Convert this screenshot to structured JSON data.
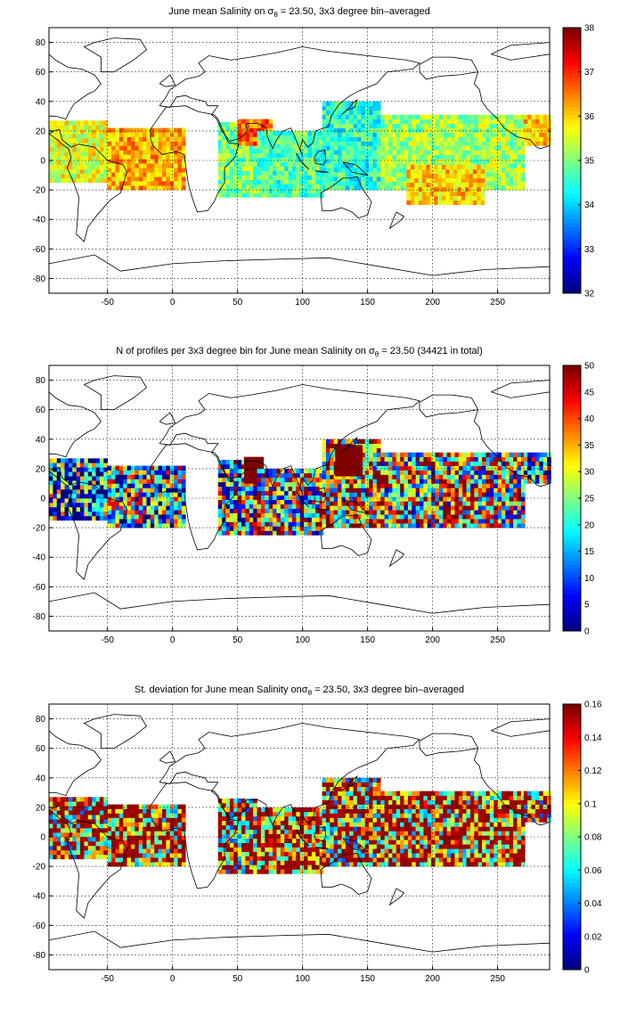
{
  "colors": {
    "colormap": "jet",
    "background": "#ffffff",
    "coast": "#000000"
  },
  "chart_data": [
    {
      "type": "heatmap",
      "title": "June mean Salinity on σθ = 23.50, 3x3 degree bin–averaged",
      "title_parts": [
        "June mean Salinity on ",
        "σ",
        "θ",
        " = 23.50, 3x3 degree bin–averaged"
      ],
      "xlim": [
        -95,
        290
      ],
      "ylim": [
        -90,
        90
      ],
      "xticks": [
        -50,
        0,
        50,
        100,
        150,
        200,
        250
      ],
      "yticks": [
        -80,
        -60,
        -40,
        -20,
        0,
        20,
        40,
        60,
        80
      ],
      "grid": true,
      "colorbar": {
        "min": 32,
        "max": 38,
        "ticks": [
          32,
          33,
          34,
          35,
          36,
          37,
          38
        ],
        "tick_labels": [
          "32",
          "33",
          "34",
          "35",
          "36",
          "37",
          "38"
        ]
      },
      "regions": [
        {
          "name": "",
          "lon": [
            -95,
            -50
          ],
          "lat": [
            -15,
            25
          ],
          "value": 35.6
        },
        {
          "name": "",
          "lon": [
            -50,
            10
          ],
          "lat": [
            -20,
            20
          ],
          "value": 36.2
        },
        {
          "name": "",
          "lon": [
            35,
            65
          ],
          "lat": [
            -25,
            25
          ],
          "value": 35.0
        },
        {
          "name": "",
          "lon": [
            50,
            75
          ],
          "lat": [
            10,
            28
          ],
          "value": 36.6
        },
        {
          "name": "",
          "lon": [
            65,
            115
          ],
          "lat": [
            -25,
            20
          ],
          "value": 34.7
        },
        {
          "name": "",
          "lon": [
            115,
            160
          ],
          "lat": [
            -20,
            40
          ],
          "value": 34.5
        },
        {
          "name": "",
          "lon": [
            160,
            270
          ],
          "lat": [
            -20,
            30
          ],
          "value": 35.2
        },
        {
          "name": "",
          "lon": [
            180,
            240
          ],
          "lat": [
            -30,
            -5
          ],
          "value": 36.0
        },
        {
          "name": "",
          "lon": [
            270,
            290
          ],
          "lat": [
            10,
            30
          ],
          "value": 36.0
        }
      ]
    },
    {
      "type": "heatmap",
      "title": "N of profiles per 3x3 degree bin for June mean Salinity on σθ = 23.50 (34421 in total)",
      "title_parts": [
        "N of profiles per 3x3 degree bin for June mean Salinity on ",
        "σ",
        "θ",
        " = 23.50 (34421 in total)"
      ],
      "xlim": [
        -95,
        290
      ],
      "ylim": [
        -90,
        90
      ],
      "xticks": [
        -50,
        0,
        50,
        100,
        150,
        200,
        250
      ],
      "yticks": [
        -80,
        -60,
        -40,
        -20,
        0,
        20,
        40,
        60,
        80
      ],
      "grid": true,
      "colorbar": {
        "min": 0,
        "max": 50,
        "ticks": [
          0,
          5,
          10,
          15,
          20,
          25,
          30,
          35,
          40,
          45,
          50
        ],
        "tick_labels": [
          "0",
          "5",
          "10",
          "15",
          "20",
          "25",
          "30",
          "35",
          "40",
          "45",
          "50"
        ]
      },
      "regions": [
        {
          "name": "",
          "lon": [
            -95,
            -50
          ],
          "lat": [
            -15,
            25
          ],
          "value": 15
        },
        {
          "name": "",
          "lon": [
            -50,
            10
          ],
          "lat": [
            -20,
            20
          ],
          "value": 20
        },
        {
          "name": "",
          "lon": [
            35,
            65
          ],
          "lat": [
            -25,
            25
          ],
          "value": 25
        },
        {
          "name": "",
          "lon": [
            55,
            70
          ],
          "lat": [
            10,
            28
          ],
          "value": 50
        },
        {
          "name": "",
          "lon": [
            65,
            115
          ],
          "lat": [
            -25,
            20
          ],
          "value": 28
        },
        {
          "name": "",
          "lon": [
            115,
            160
          ],
          "lat": [
            -20,
            40
          ],
          "value": 35
        },
        {
          "name": "",
          "lon": [
            125,
            145
          ],
          "lat": [
            15,
            35
          ],
          "value": 50
        },
        {
          "name": "",
          "lon": [
            160,
            270
          ],
          "lat": [
            -20,
            30
          ],
          "value": 30
        },
        {
          "name": "",
          "lon": [
            270,
            290
          ],
          "lat": [
            10,
            30
          ],
          "value": 18
        }
      ]
    },
    {
      "type": "heatmap",
      "title": "St. deviation for June mean Salinity on σθ = 23.50, 3x3 degree bin–averaged",
      "title_parts": [
        "St. deviation for June mean Salinity on",
        "σ",
        "θ",
        " = 23.50, 3x3 degree bin–averaged"
      ],
      "xlim": [
        -95,
        290
      ],
      "ylim": [
        -90,
        90
      ],
      "xticks": [
        -50,
        0,
        50,
        100,
        150,
        200,
        250
      ],
      "yticks": [
        -80,
        -60,
        -40,
        -20,
        0,
        20,
        40,
        60,
        80
      ],
      "grid": true,
      "colorbar": {
        "min": 0,
        "max": 0.16,
        "ticks": [
          0,
          0.02,
          0.04,
          0.06,
          0.08,
          0.1,
          0.12,
          0.14,
          0.16
        ],
        "tick_labels": [
          "0",
          "0.02",
          "0.04",
          "0.06",
          "0.08",
          "0.1",
          "0.12",
          "0.14",
          "0.16"
        ]
      },
      "regions": [
        {
          "name": "",
          "lon": [
            -95,
            -50
          ],
          "lat": [
            -15,
            25
          ],
          "value": 0.12
        },
        {
          "name": "",
          "lon": [
            -50,
            10
          ],
          "lat": [
            -20,
            20
          ],
          "value": 0.13
        },
        {
          "name": "",
          "lon": [
            35,
            65
          ],
          "lat": [
            -25,
            25
          ],
          "value": 0.12
        },
        {
          "name": "",
          "lon": [
            65,
            115
          ],
          "lat": [
            -25,
            20
          ],
          "value": 0.14
        },
        {
          "name": "",
          "lon": [
            115,
            160
          ],
          "lat": [
            -20,
            40
          ],
          "value": 0.12
        },
        {
          "name": "",
          "lon": [
            160,
            270
          ],
          "lat": [
            -20,
            30
          ],
          "value": 0.13
        },
        {
          "name": "",
          "lon": [
            270,
            290
          ],
          "lat": [
            10,
            30
          ],
          "value": 0.12
        }
      ]
    }
  ]
}
